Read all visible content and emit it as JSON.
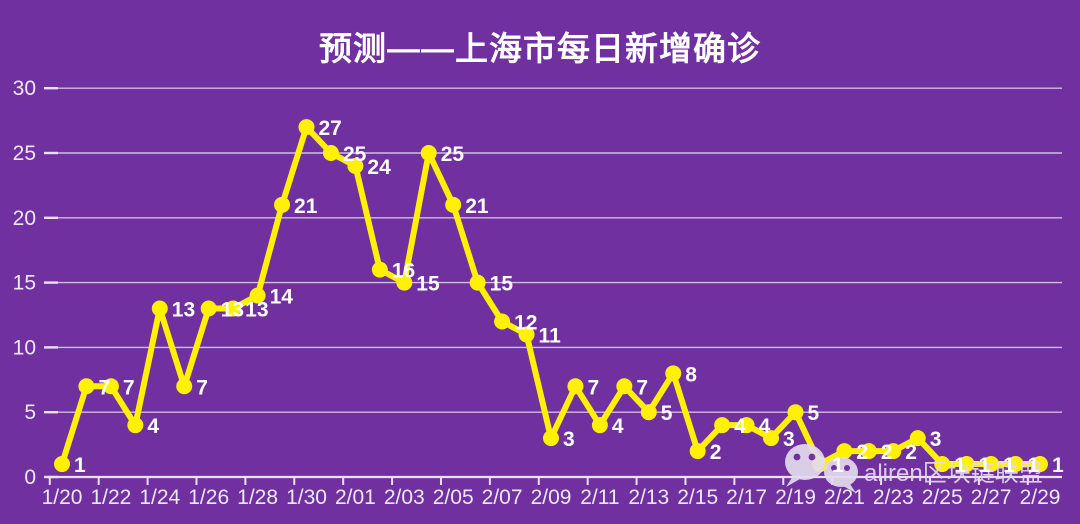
{
  "title": "预测——上海市每日新增确诊",
  "colors": {
    "background": "#7030A0",
    "line": "#FFF100",
    "marker": "#FFF100",
    "grid": "#CDBEDF",
    "axis": "#E9E1F3",
    "axis_text": "#EFE9F7",
    "data_label": "#FFFFFF",
    "title_text": "#FFFFFF",
    "watermark": "#E3DBEE"
  },
  "watermark": {
    "text": "aliren区块链联盟",
    "icon": "wechat-logo"
  },
  "chart_data": {
    "type": "line",
    "title": "预测——上海市每日新增确诊",
    "x": [
      "1/20",
      "1/21",
      "1/22",
      "1/23",
      "1/24",
      "1/25",
      "1/26",
      "1/27",
      "1/28",
      "1/29",
      "1/30",
      "1/31",
      "2/01",
      "2/02",
      "2/03",
      "2/04",
      "2/05",
      "2/06",
      "2/07",
      "2/08",
      "2/09",
      "2/10",
      "2/11",
      "2/12",
      "2/13",
      "2/14",
      "2/15",
      "2/16",
      "2/17",
      "2/18",
      "2/19",
      "2/20",
      "2/21",
      "2/22",
      "2/23",
      "2/24",
      "2/25",
      "2/26",
      "2/27",
      "2/28",
      "2/29"
    ],
    "values": [
      1,
      7,
      7,
      4,
      13,
      7,
      13,
      13,
      14,
      21,
      27,
      25,
      24,
      16,
      15,
      25,
      21,
      15,
      12,
      11,
      3,
      7,
      4,
      7,
      5,
      8,
      2,
      4,
      4,
      3,
      5,
      1,
      2,
      2,
      2,
      3,
      1,
      1,
      1,
      1,
      1
    ],
    "x_tick_labels": [
      "1/20",
      "1/22",
      "1/24",
      "1/26",
      "1/28",
      "1/30",
      "2/01",
      "2/03",
      "2/05",
      "2/07",
      "2/09",
      "2/11",
      "2/13",
      "2/15",
      "2/17",
      "2/19",
      "2/21",
      "2/23",
      "2/25",
      "2/27",
      "2/29"
    ],
    "yticks": [
      0,
      5,
      10,
      15,
      20,
      25,
      30
    ],
    "ylim": [
      0,
      30
    ],
    "xlabel": "",
    "ylabel": "",
    "grid": true,
    "legend": false,
    "marker": "circle",
    "data_labels": true
  }
}
